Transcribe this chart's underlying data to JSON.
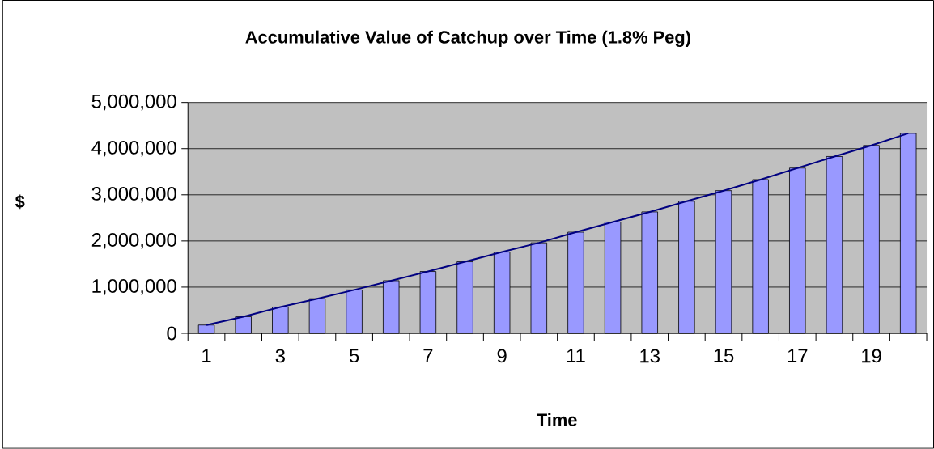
{
  "chart_data": {
    "type": "bar",
    "title": "Accumulative Value of Catchup over Time (1.8% Peg)",
    "xlabel": "Time",
    "ylabel": "$",
    "categories": [
      "1",
      null,
      "3",
      null,
      "5",
      null,
      "7",
      null,
      "9",
      null,
      "11",
      null,
      "13",
      null,
      "15",
      null,
      "17",
      null,
      "19",
      null
    ],
    "series": [
      {
        "color": "#9999ff",
        "values": [
          180000,
          360000,
          570000,
          750000,
          940000,
          1140000,
          1340000,
          1550000,
          1760000,
          1960000,
          2190000,
          2410000,
          2630000,
          2860000,
          3090000,
          3330000,
          3580000,
          3830000,
          4070000,
          4330000
        ]
      },
      {
        "type": "line",
        "color": "#000080",
        "values": [
          180000,
          360000,
          570000,
          750000,
          940000,
          1140000,
          1340000,
          1550000,
          1760000,
          1960000,
          2190000,
          2410000,
          2630000,
          2860000,
          3090000,
          3330000,
          3580000,
          3830000,
          4070000,
          4330000
        ]
      }
    ],
    "ylim": [
      0,
      5000000
    ],
    "yticks": [
      {
        "value": 0,
        "label": "0"
      },
      {
        "value": 1000000,
        "label": "1,000,000"
      },
      {
        "value": 2000000,
        "label": "2,000,000"
      },
      {
        "value": 3000000,
        "label": "3,000,000"
      },
      {
        "value": 4000000,
        "label": "4,000,000"
      },
      {
        "value": 5000000,
        "label": "5,000,000"
      }
    ],
    "grid": "y",
    "marker": "none"
  }
}
